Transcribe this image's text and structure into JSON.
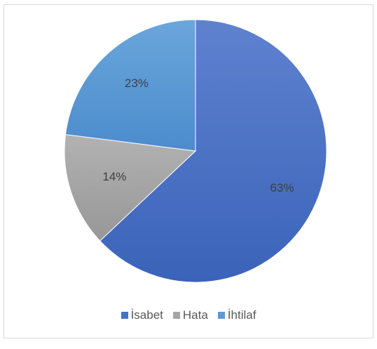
{
  "chart_data": {
    "type": "pie",
    "categories": [
      "İsabet",
      "Hata",
      "İhtilaf"
    ],
    "values": [
      63,
      14,
      23
    ],
    "labels": [
      "63%",
      "14%",
      "23%"
    ],
    "colors": [
      "#4472c4",
      "#a5a5a5",
      "#5b9bd5"
    ],
    "legend_position": "bottom",
    "start_angle": "12 o'clock",
    "direction": "clockwise"
  }
}
